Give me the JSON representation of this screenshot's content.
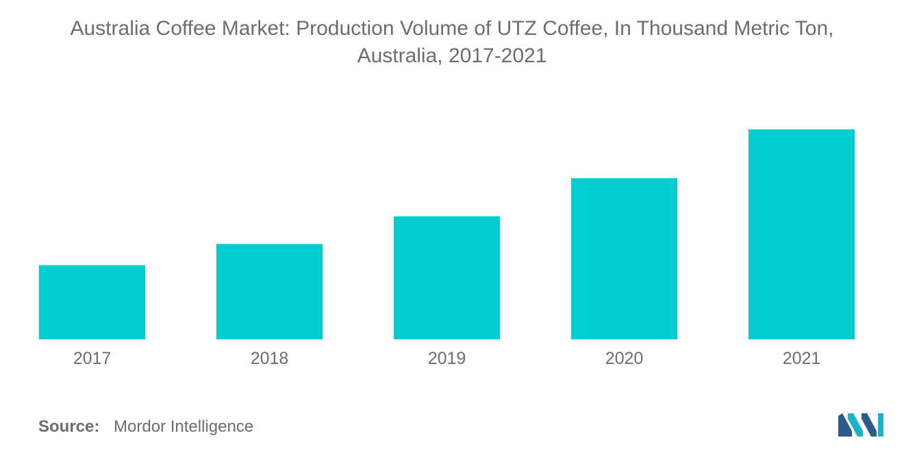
{
  "title_line1": "Australia Coffee Market: Production Volume of UTZ Coffee, In Thousand Metric Ton,",
  "title_line2": "Australia, 2017-2021",
  "source": {
    "label": "Source:",
    "value": "Mordor Intelligence"
  },
  "colors": {
    "bar": "#00CED1",
    "text": "#6d6d6d",
    "logo_dark": "#2b5a8c",
    "logo_light": "#18b4c6"
  },
  "logo_icon": "mordor-intelligence-logo",
  "chart_data": {
    "type": "bar",
    "title": "Australia Coffee Market: Production Volume of UTZ Coffee, In Thousand Metric Ton, Australia, 2017-2021",
    "categories": [
      "2017",
      "2018",
      "2019",
      "2020",
      "2021"
    ],
    "values": [
      3.5,
      4.5,
      5.8,
      7.6,
      9.9
    ],
    "xlabel": "",
    "ylabel": "",
    "ylim": [
      0,
      10
    ],
    "grid": false,
    "legend": "none",
    "y_axis_visible": false
  }
}
